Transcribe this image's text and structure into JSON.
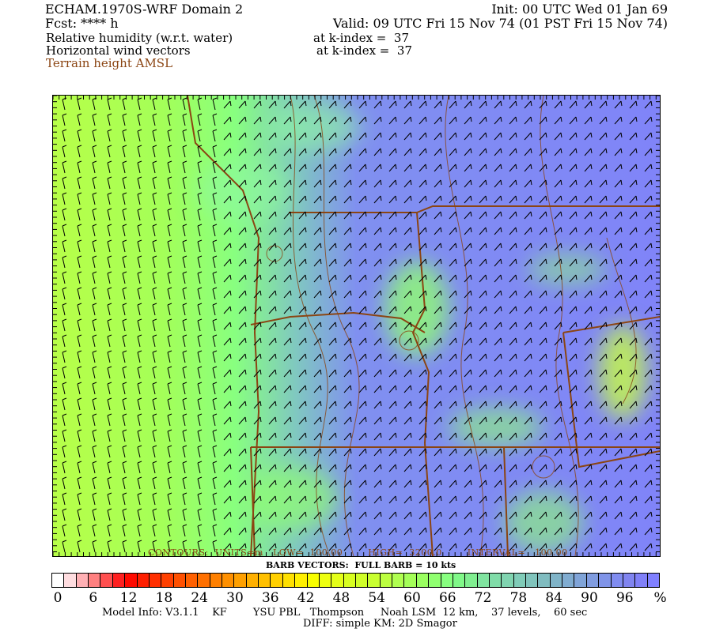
{
  "header": {
    "title": "ECHAM.1970S-WRF Domain 2",
    "fcst": "Fcst: **** h",
    "init": "Init: 00 UTC Wed 01 Jan 69",
    "valid": "Valid: 09 UTC Fri 15 Nov 74 (01 PST Fri 15 Nov 74)",
    "field1": "Relative humidity (w.r.t. water)",
    "field1_level": "at k-index =  37",
    "field2": "Horizontal wind vectors",
    "field2_level": "at k-index =  37",
    "field3": "Terrain height AMSL"
  },
  "map": {
    "contour_label": "CONTOURS:  UNITS=m   LOW=  100.00        HIGH=  3200.0        INTERVAL=   100.00",
    "barb_label": "BARB VECTORS:  FULL BARB = 10 kts",
    "contour_color": "#8b4513"
  },
  "colorbar": {
    "labels": [
      "0",
      "6",
      "12",
      "18",
      "24",
      "30",
      "36",
      "42",
      "48",
      "54",
      "60",
      "66",
      "72",
      "78",
      "84",
      "90",
      "96",
      "%"
    ],
    "colors": [
      "#ffffff",
      "#ffdde0",
      "#ffb0b4",
      "#ff8080",
      "#ff5050",
      "#ff2020",
      "#ff0a00",
      "#ff1f00",
      "#ff2f00",
      "#ff4000",
      "#ff5000",
      "#ff6000",
      "#ff7000",
      "#ff8000",
      "#ff9000",
      "#ffa000",
      "#ffb000",
      "#ffc000",
      "#ffd000",
      "#ffe000",
      "#fff000",
      "#f8ff00",
      "#eeff10",
      "#e4ff18",
      "#d8ff20",
      "#d0ff28",
      "#c8ff30",
      "#bcff40",
      "#b0ff50",
      "#a4ff58",
      "#9aff60",
      "#90ff70",
      "#88ff80",
      "#80f888",
      "#80ee90",
      "#80e4a0",
      "#80dca8",
      "#80d4b0",
      "#80ccb8",
      "#80c4bc",
      "#80bcc0",
      "#80b4c8",
      "#80acd0",
      "#80a4d8",
      "#809ce0",
      "#8094e8",
      "#808cf0",
      "#8084f0",
      "#8080f8",
      "#8080ff"
    ]
  },
  "footer": {
    "model_info": "Model Info: V3.1.1    KF        YSU PBL   Thompson     Noah LSM  12 km,    37 levels,    60 sec",
    "diff": "DIFF: simple KM: 2D Smagor"
  }
}
